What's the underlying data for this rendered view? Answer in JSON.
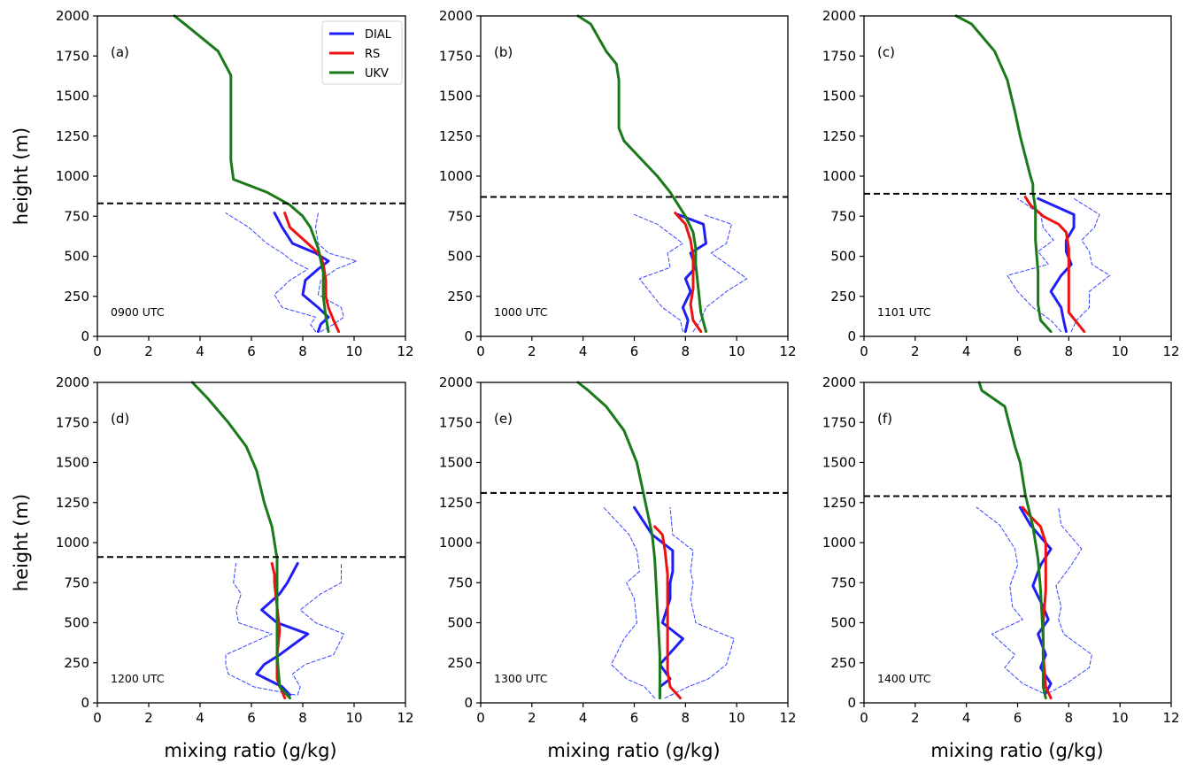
{
  "figure": {
    "ylabel": "height (m)",
    "xlabel": "mixing ratio (g/kg)",
    "legend": {
      "position": "top-right of panel (a)",
      "entries": [
        "DIAL",
        "RS",
        "UKV"
      ]
    },
    "colors": {
      "DIAL": "#1f1ff5",
      "DIAL_band": "#3344ff",
      "RS": "#ee1111",
      "UKV": "#1a7a1a",
      "bl_top": "#000000"
    }
  },
  "chart_data": [
    {
      "type": "line",
      "panel": "(a)",
      "time_label": "0900 UTC",
      "xlim": [
        0,
        12
      ],
      "ylim": [
        0,
        2000
      ],
      "xticks": [
        0,
        2,
        4,
        6,
        8,
        10,
        12
      ],
      "yticks": [
        0,
        250,
        500,
        750,
        1000,
        1250,
        1500,
        1750,
        2000
      ],
      "boundary_layer_top": 830,
      "series": [
        {
          "name": "DIAL",
          "style": "solid",
          "x": [
            8.6,
            8.7,
            9.0,
            8.6,
            8.0,
            8.1,
            8.6,
            9.0,
            8.5,
            7.6,
            7.2,
            6.9
          ],
          "y": [
            30,
            75,
            120,
            180,
            260,
            350,
            420,
            470,
            520,
            580,
            680,
            770
          ]
        },
        {
          "name": "DIAL",
          "style": "dashed-lower",
          "x": [
            8.5,
            8.3,
            8.5,
            7.2,
            6.9,
            7.5,
            8.2,
            7.6,
            7.2,
            6.6,
            5.9,
            5.0
          ],
          "y": [
            30,
            75,
            120,
            180,
            260,
            350,
            420,
            470,
            520,
            580,
            680,
            770
          ]
        },
        {
          "name": "DIAL",
          "style": "dashed-upper",
          "x": [
            8.7,
            9.2,
            9.6,
            9.5,
            8.6,
            8.7,
            9.3,
            10.1,
            9.0,
            8.6,
            8.5,
            8.6
          ],
          "y": [
            30,
            75,
            120,
            180,
            260,
            350,
            420,
            470,
            520,
            580,
            680,
            770
          ]
        },
        {
          "name": "RS",
          "x": [
            9.4,
            9.2,
            9.0,
            8.9,
            8.9,
            8.8,
            8.7,
            8.4,
            7.5,
            7.3
          ],
          "y": [
            30,
            100,
            180,
            250,
            350,
            450,
            500,
            550,
            680,
            770
          ]
        },
        {
          "name": "UKV",
          "x": [
            9.0,
            8.9,
            8.8,
            8.8,
            8.6,
            8.3,
            8.0,
            7.5,
            6.6,
            5.3,
            5.2,
            5.2,
            5.2,
            5.2,
            4.7,
            3.4,
            3.0
          ],
          "y": [
            30,
            120,
            250,
            400,
            550,
            680,
            750,
            820,
            900,
            980,
            1100,
            1250,
            1400,
            1630,
            1780,
            1950,
            2000
          ]
        }
      ]
    },
    {
      "type": "line",
      "panel": "(b)",
      "time_label": "1000 UTC",
      "xlim": [
        0,
        12
      ],
      "ylim": [
        0,
        2000
      ],
      "xticks": [
        0,
        2,
        4,
        6,
        8,
        10,
        12
      ],
      "yticks": [
        0,
        250,
        500,
        750,
        1000,
        1250,
        1500,
        1750,
        2000
      ],
      "boundary_layer_top": 870,
      "series": [
        {
          "name": "DIAL",
          "style": "solid",
          "x": [
            8.0,
            8.1,
            7.9,
            8.2,
            8.0,
            8.4,
            8.2,
            8.8,
            8.7,
            7.7
          ],
          "y": [
            30,
            100,
            180,
            280,
            360,
            430,
            520,
            580,
            700,
            760
          ]
        },
        {
          "name": "DIAL",
          "style": "dashed-lower",
          "x": [
            7.9,
            7.8,
            7.1,
            6.6,
            6.2,
            7.4,
            7.3,
            7.9,
            6.9,
            6.0
          ],
          "y": [
            30,
            100,
            180,
            280,
            360,
            430,
            520,
            580,
            700,
            760
          ]
        },
        {
          "name": "DIAL",
          "style": "dashed-upper",
          "x": [
            8.3,
            8.6,
            8.8,
            9.6,
            10.4,
            9.8,
            9.0,
            9.6,
            9.8,
            8.7
          ],
          "y": [
            30,
            100,
            180,
            280,
            360,
            430,
            520,
            580,
            700,
            760
          ]
        },
        {
          "name": "RS",
          "x": [
            8.6,
            8.3,
            8.2,
            8.3,
            8.3,
            8.3,
            8.2,
            8.0,
            7.6
          ],
          "y": [
            30,
            100,
            200,
            300,
            400,
            500,
            600,
            700,
            770
          ]
        },
        {
          "name": "UKV",
          "x": [
            8.8,
            8.6,
            8.5,
            8.4,
            8.4,
            8.3,
            8.0,
            7.4,
            6.9,
            5.6,
            5.4,
            5.4,
            5.4,
            5.4,
            5.3,
            4.9,
            4.3,
            3.8
          ],
          "y": [
            30,
            150,
            300,
            450,
            550,
            650,
            750,
            900,
            1000,
            1220,
            1300,
            1350,
            1500,
            1600,
            1700,
            1780,
            1950,
            2000
          ]
        }
      ]
    },
    {
      "type": "line",
      "panel": "(c)",
      "time_label": "1101 UTC",
      "xlim": [
        0,
        12
      ],
      "ylim": [
        0,
        2000
      ],
      "xticks": [
        0,
        2,
        4,
        6,
        8,
        10,
        12
      ],
      "yticks": [
        0,
        250,
        500,
        750,
        1000,
        1250,
        1500,
        1750,
        2000
      ],
      "boundary_layer_top": 890,
      "series": [
        {
          "name": "DIAL",
          "style": "solid",
          "x": [
            7.9,
            7.8,
            7.7,
            7.3,
            7.7,
            8.1,
            7.9,
            7.9,
            8.2,
            8.2,
            6.8
          ],
          "y": [
            30,
            100,
            180,
            280,
            380,
            450,
            530,
            600,
            680,
            760,
            860
          ]
        },
        {
          "name": "DIAL",
          "style": "dashed-lower",
          "x": [
            7.7,
            7.3,
            6.6,
            6.0,
            5.6,
            7.2,
            6.8,
            7.4,
            7.0,
            6.9,
            6.0
          ],
          "y": [
            30,
            100,
            180,
            280,
            380,
            450,
            530,
            600,
            680,
            760,
            860
          ]
        },
        {
          "name": "DIAL",
          "style": "dashed-upper",
          "x": [
            8.1,
            8.3,
            8.8,
            8.8,
            9.6,
            8.9,
            8.8,
            8.5,
            9.0,
            9.2,
            8.2
          ],
          "y": [
            30,
            100,
            180,
            280,
            380,
            450,
            530,
            600,
            680,
            760,
            860
          ]
        },
        {
          "name": "RS",
          "x": [
            8.6,
            8.0,
            8.0,
            8.0,
            8.0,
            7.9,
            7.6,
            7.0,
            6.5,
            6.3
          ],
          "y": [
            30,
            150,
            300,
            400,
            550,
            650,
            700,
            750,
            820,
            870
          ]
        },
        {
          "name": "UKV",
          "x": [
            7.3,
            6.9,
            6.8,
            6.8,
            6.7,
            6.7,
            6.6,
            6.6,
            6.5,
            6.1,
            5.9,
            5.6,
            5.1,
            4.2,
            3.6
          ],
          "y": [
            30,
            100,
            200,
            400,
            600,
            800,
            900,
            950,
            1000,
            1250,
            1400,
            1600,
            1780,
            1950,
            2000
          ]
        }
      ]
    },
    {
      "type": "line",
      "panel": "(d)",
      "time_label": "1200 UTC",
      "xlim": [
        0,
        12
      ],
      "ylim": [
        0,
        2000
      ],
      "xticks": [
        0,
        2,
        4,
        6,
        8,
        10,
        12
      ],
      "yticks": [
        0,
        250,
        500,
        750,
        1000,
        1250,
        1500,
        1750,
        2000
      ],
      "boundary_layer_top": 910,
      "series": [
        {
          "name": "DIAL",
          "style": "solid",
          "x": [
            7.5,
            7.2,
            6.2,
            6.5,
            7.1,
            8.2,
            7.0,
            6.4,
            7.1,
            7.4,
            7.8
          ],
          "y": [
            50,
            100,
            180,
            240,
            300,
            430,
            500,
            580,
            680,
            750,
            870
          ]
        },
        {
          "name": "DIAL",
          "style": "dashed-lower",
          "x": [
            7.7,
            6.1,
            5.1,
            5.0,
            5.0,
            6.8,
            5.5,
            5.4,
            5.6,
            5.3,
            5.4
          ],
          "y": [
            50,
            100,
            180,
            240,
            300,
            430,
            500,
            580,
            680,
            750,
            870
          ]
        },
        {
          "name": "DIAL",
          "style": "dashed-upper",
          "x": [
            7.8,
            7.9,
            7.6,
            8.1,
            9.2,
            9.6,
            8.5,
            7.9,
            8.7,
            9.5,
            9.5
          ],
          "y": [
            50,
            100,
            180,
            240,
            300,
            430,
            500,
            580,
            680,
            750,
            870
          ]
        },
        {
          "name": "RS",
          "x": [
            7.3,
            7.0,
            7.0,
            7.1,
            7.0,
            6.9,
            6.9,
            6.8
          ],
          "y": [
            30,
            150,
            300,
            450,
            600,
            750,
            800,
            870
          ]
        },
        {
          "name": "UKV",
          "x": [
            7.5,
            7.1,
            7.0,
            7.0,
            7.0,
            7.0,
            6.9,
            6.8,
            6.5,
            6.2,
            5.8,
            5.1,
            4.3,
            3.7
          ],
          "y": [
            30,
            100,
            300,
            500,
            700,
            900,
            1000,
            1100,
            1250,
            1450,
            1600,
            1750,
            1900,
            2000
          ]
        }
      ]
    },
    {
      "type": "line",
      "panel": "(e)",
      "time_label": "1300 UTC",
      "xlim": [
        0,
        12
      ],
      "ylim": [
        0,
        2000
      ],
      "xticks": [
        0,
        2,
        4,
        6,
        8,
        10,
        12
      ],
      "yticks": [
        0,
        250,
        500,
        750,
        1000,
        1250,
        1500,
        1750,
        2000
      ],
      "boundary_layer_top": 1310,
      "series": [
        {
          "name": "DIAL",
          "style": "solid",
          "x": [
            7.0,
            7.0,
            7.4,
            7.0,
            7.9,
            7.1,
            7.4,
            7.4,
            7.5,
            7.5,
            6.7,
            6.0
          ],
          "y": [
            30,
            100,
            150,
            240,
            400,
            500,
            650,
            750,
            820,
            950,
            1050,
            1220
          ]
        },
        {
          "name": "DIAL",
          "style": "dashed-lower",
          "x": [
            6.8,
            6.4,
            5.7,
            5.1,
            5.6,
            6.1,
            6.0,
            5.7,
            6.2,
            6.1,
            5.8,
            4.8
          ],
          "y": [
            30,
            100,
            150,
            240,
            400,
            500,
            650,
            750,
            820,
            950,
            1050,
            1220
          ]
        },
        {
          "name": "DIAL",
          "style": "dashed-upper",
          "x": [
            7.2,
            8.1,
            8.9,
            9.6,
            9.9,
            8.4,
            8.2,
            8.3,
            8.2,
            8.3,
            7.5,
            7.4
          ],
          "y": [
            30,
            100,
            150,
            240,
            400,
            500,
            650,
            750,
            820,
            950,
            1050,
            1220
          ]
        },
        {
          "name": "RS",
          "x": [
            7.8,
            7.4,
            7.3,
            7.3,
            7.3,
            7.3,
            7.2,
            7.1,
            6.8
          ],
          "y": [
            30,
            100,
            200,
            400,
            600,
            800,
            950,
            1050,
            1100
          ]
        },
        {
          "name": "UKV",
          "x": [
            7.0,
            7.0,
            7.0,
            6.9,
            6.8,
            6.7,
            6.5,
            6.3,
            6.1,
            5.6,
            4.9,
            4.2,
            3.8
          ],
          "y": [
            30,
            100,
            300,
            600,
            900,
            1050,
            1200,
            1350,
            1500,
            1700,
            1850,
            1950,
            2000
          ]
        }
      ]
    },
    {
      "type": "line",
      "panel": "(f)",
      "time_label": "1400 UTC",
      "xlim": [
        0,
        12
      ],
      "ylim": [
        0,
        2000
      ],
      "xticks": [
        0,
        2,
        4,
        6,
        8,
        10,
        12
      ],
      "yticks": [
        0,
        250,
        500,
        750,
        1000,
        1250,
        1500,
        1750,
        2000
      ],
      "boundary_layer_top": 1290,
      "series": [
        {
          "name": "DIAL",
          "style": "solid",
          "x": [
            7.1,
            7.3,
            6.9,
            7.1,
            6.8,
            7.2,
            7.0,
            6.6,
            6.9,
            7.3,
            6.5,
            6.1
          ],
          "y": [
            60,
            120,
            220,
            300,
            430,
            520,
            600,
            730,
            860,
            960,
            1110,
            1220
          ]
        },
        {
          "name": "DIAL",
          "style": "dashed-lower",
          "x": [
            7.0,
            6.2,
            5.5,
            5.9,
            5.0,
            6.2,
            5.8,
            5.7,
            6.0,
            5.9,
            5.3,
            4.4
          ],
          "y": [
            60,
            120,
            220,
            300,
            430,
            520,
            600,
            730,
            860,
            960,
            1110,
            1220
          ]
        },
        {
          "name": "DIAL",
          "style": "dashed-upper",
          "x": [
            7.2,
            7.9,
            8.8,
            8.9,
            7.8,
            7.6,
            7.7,
            7.5,
            8.1,
            8.5,
            7.7,
            7.6
          ],
          "y": [
            60,
            120,
            220,
            300,
            430,
            520,
            600,
            730,
            860,
            960,
            1110,
            1220
          ]
        },
        {
          "name": "RS",
          "x": [
            7.3,
            7.1,
            7.0,
            7.0,
            7.1,
            7.1,
            7.1,
            6.9,
            6.4,
            6.2
          ],
          "y": [
            30,
            100,
            300,
            500,
            700,
            900,
            1000,
            1100,
            1180,
            1220
          ]
        },
        {
          "name": "UKV",
          "x": [
            7.1,
            7.0,
            7.0,
            6.9,
            6.8,
            6.6,
            6.3,
            6.1,
            5.9,
            5.5,
            4.6,
            4.5
          ],
          "y": [
            30,
            100,
            400,
            700,
            900,
            1100,
            1300,
            1500,
            1600,
            1850,
            1950,
            2000
          ]
        }
      ]
    }
  ]
}
